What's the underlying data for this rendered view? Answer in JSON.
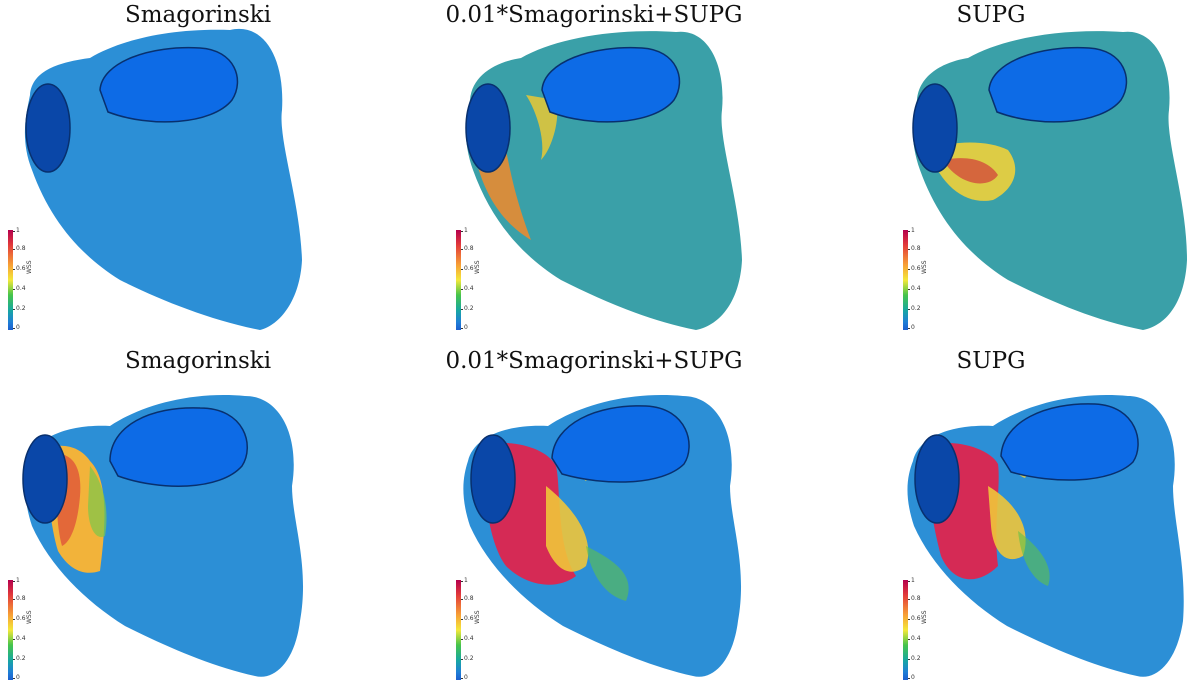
{
  "figure": {
    "panels": [
      {
        "title": "Smagorinski",
        "variant": "low"
      },
      {
        "title": "0.01*Smagorinski+SUPG",
        "variant": "mid"
      },
      {
        "title": "SUPG",
        "variant": "midb"
      },
      {
        "title": "Smagorinski",
        "variant": "high"
      },
      {
        "title": "0.01*Smagorinski+SUPG",
        "variant": "vhigh"
      },
      {
        "title": "SUPG",
        "variant": "vhighb"
      }
    ],
    "colorbar": {
      "label": "WSS",
      "ticks": [
        "1",
        "0.8",
        "0.6",
        "0.4",
        "0.2",
        "0"
      ],
      "colors": [
        "#b5004e",
        "#e23a3a",
        "#f7a035",
        "#f4e83a",
        "#46c44a",
        "#17a8a0",
        "#1e7fd6",
        "#1c5fcf"
      ]
    },
    "surface_colors": {
      "base": "#2c8fd6",
      "dark_opening": "#0a47a8",
      "light_opening": "#0d6be6"
    }
  }
}
